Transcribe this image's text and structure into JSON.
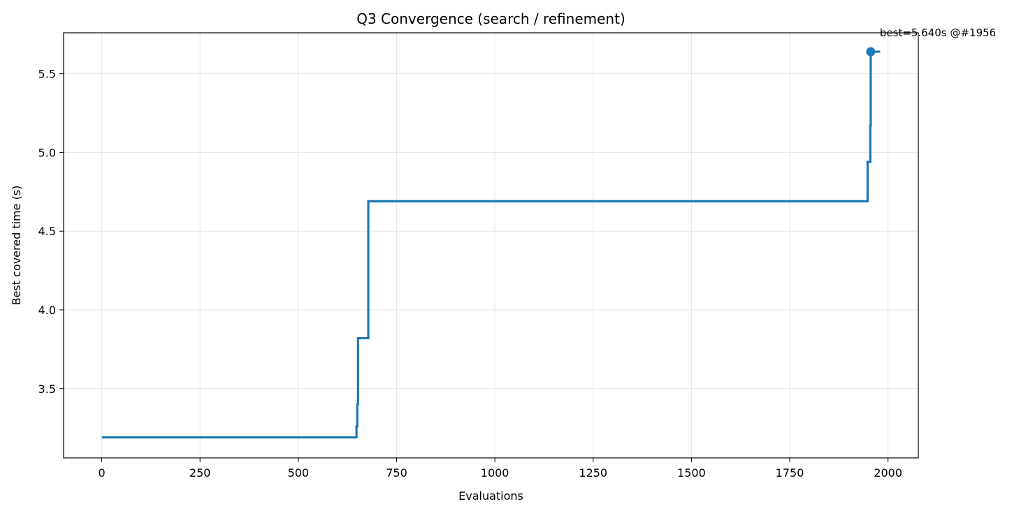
{
  "chart_data": {
    "type": "line",
    "title": "Q3 Convergence (search / refinement)",
    "xlabel": "Evaluations",
    "ylabel": "Best covered time (s)",
    "xlim": [
      -97,
      2077
    ],
    "ylim": [
      3.06,
      5.76
    ],
    "xticks": [
      0,
      250,
      500,
      750,
      1000,
      1250,
      1500,
      1750,
      2000
    ],
    "yticks": [
      3.5,
      4.0,
      4.5,
      5.0,
      5.5
    ],
    "ytick_labels": [
      "3.5",
      "4.0",
      "4.5",
      "5.0",
      "5.5"
    ],
    "grid": true,
    "line_color": "#1f77b4",
    "series": [
      {
        "step": "post",
        "x": [
          0,
          648,
          650,
          651,
          652,
          654,
          678,
          1948,
          1950,
          1955,
          1956,
          1980
        ],
        "y": [
          3.19,
          3.26,
          3.4,
          3.4,
          3.82,
          3.82,
          4.69,
          4.94,
          4.94,
          5.17,
          5.64,
          5.64
        ]
      }
    ],
    "best_point": {
      "x": 1956,
      "y": 5.64
    },
    "annotation": "best=5.640s @#1956"
  }
}
